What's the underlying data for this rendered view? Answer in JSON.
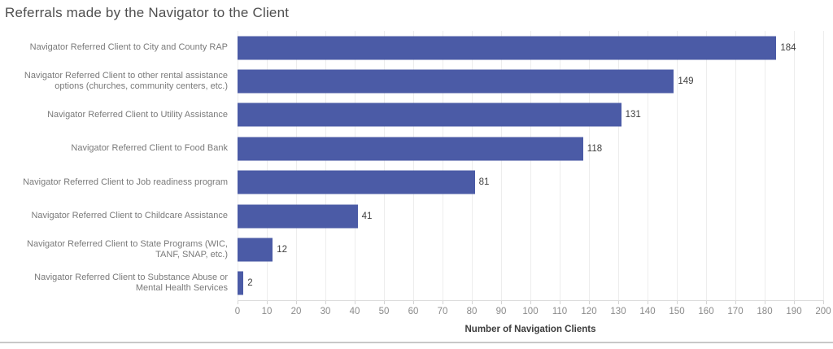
{
  "window": {
    "title": "Referrals made by the Navigator to the Client"
  },
  "chart_data": {
    "type": "bar",
    "orientation": "horizontal",
    "title": "Referrals made by the Navigator to the Client",
    "categories": [
      "Navigator Referred Client to City and County RAP",
      "Navigator Referred Client to other rental assistance options (churches, community centers, etc.)",
      "Navigator Referred Client to Utility Assistance",
      "Navigator Referred Client to Food Bank",
      "Navigator Referred Client to Job readiness program",
      "Navigator Referred Client to Childcare Assistance",
      "Navigator Referred Client to State Programs (WIC, TANF, SNAP, etc.)",
      "Navigator Referred Client to Substance Abuse or Mental Health Services"
    ],
    "values": [
      184,
      149,
      131,
      118,
      81,
      41,
      12,
      2
    ],
    "value_labels": [
      "184",
      "149",
      "131",
      "118",
      "81",
      "41",
      "12",
      "2"
    ],
    "xlabel": "Number of Navigation Clients",
    "xlim": [
      0,
      200
    ],
    "xticks": [
      0,
      10,
      20,
      30,
      40,
      50,
      60,
      70,
      80,
      90,
      100,
      110,
      120,
      130,
      140,
      150,
      160,
      170,
      180,
      190,
      200
    ],
    "grid": "vertical",
    "legend": "none",
    "bar_color": "#4b5ba6",
    "value_labels_shown": true
  }
}
